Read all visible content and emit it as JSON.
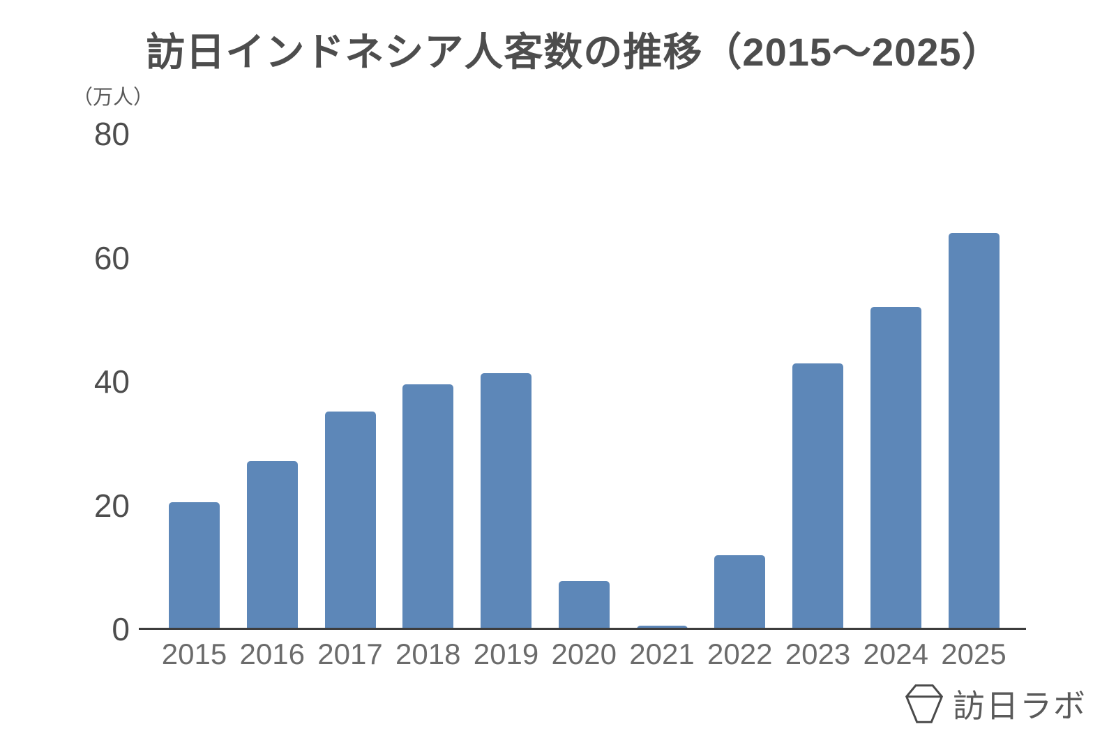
{
  "chart_data": {
    "type": "bar",
    "title": "訪日インドネシア人客数の推移（2015〜2025）",
    "unit_label": "（万人）",
    "categories": [
      "2015",
      "2016",
      "2017",
      "2018",
      "2019",
      "2020",
      "2021",
      "2022",
      "2023",
      "2024",
      "2025"
    ],
    "values": [
      20.5,
      27.1,
      35.2,
      39.6,
      41.3,
      7.8,
      0.6,
      11.9,
      42.9,
      52.0,
      64.0
    ],
    "yticks": [
      0,
      20,
      40,
      60,
      80
    ],
    "ylim": [
      0,
      80
    ],
    "xlabel": "",
    "ylabel": "（万人）",
    "grid": false,
    "legend_position": "none",
    "bar_color": "#5d87b8",
    "axis_color": "#3d3d3d",
    "ytick_color": "#4d4d4d",
    "xtick_color": "#6b6b6b",
    "title_color": "#4d4d4d"
  },
  "branding": {
    "logo_text": "訪日ラボ",
    "logo_icon": "hexagon-gem-icon",
    "logo_color": "#5a5a5a"
  }
}
